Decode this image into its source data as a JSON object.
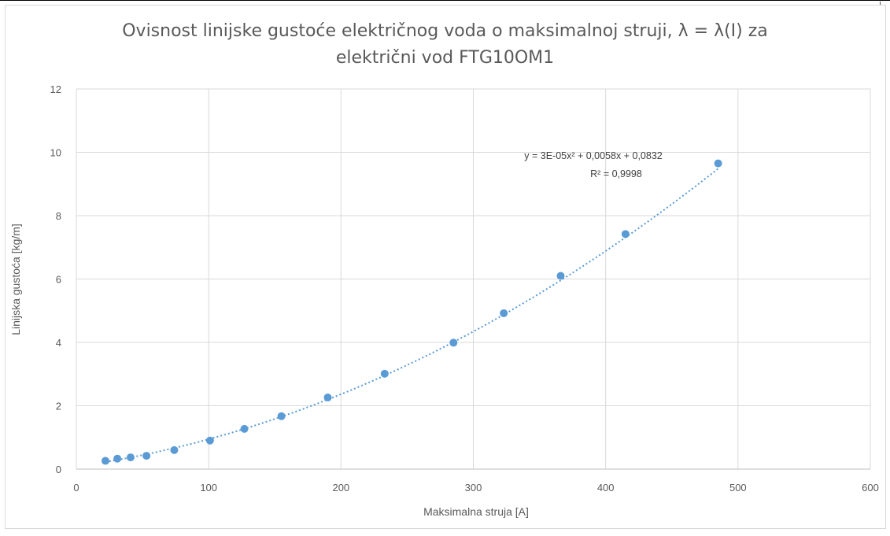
{
  "chart_data": {
    "type": "scatter",
    "title_line1": "Ovisnost linijske gustoće električnog voda o maksimalnoj struji, λ = λ(I) za",
    "title_line2": "električni vod FTG10OM1",
    "xlabel": "Maksimalna struja [A]",
    "ylabel": "Linijska gustoća [kg/m]",
    "xlim": [
      0,
      600
    ],
    "ylim": [
      0,
      12
    ],
    "x_ticks": [
      0,
      100,
      200,
      300,
      400,
      500,
      600
    ],
    "y_ticks": [
      0,
      2,
      4,
      6,
      8,
      10,
      12
    ],
    "grid": true,
    "marker_color": "#5b9bd5",
    "trendline": {
      "type": "polynomial-2",
      "equation": "y = 3E-05x² + 0,0058x + 0,0832",
      "r_squared": "R² = 0,9998",
      "coefficients": [
        2.8e-05,
        0.0058,
        0.0832
      ],
      "style": "dotted"
    },
    "series": [
      {
        "x": [
          22,
          31,
          41,
          53,
          74,
          101,
          127,
          155,
          190,
          233,
          285,
          323,
          366,
          415,
          485
        ],
        "y": [
          0.26,
          0.33,
          0.37,
          0.42,
          0.6,
          0.9,
          1.27,
          1.67,
          2.26,
          3.01,
          3.99,
          4.92,
          6.1,
          7.42,
          9.65
        ]
      }
    ]
  }
}
